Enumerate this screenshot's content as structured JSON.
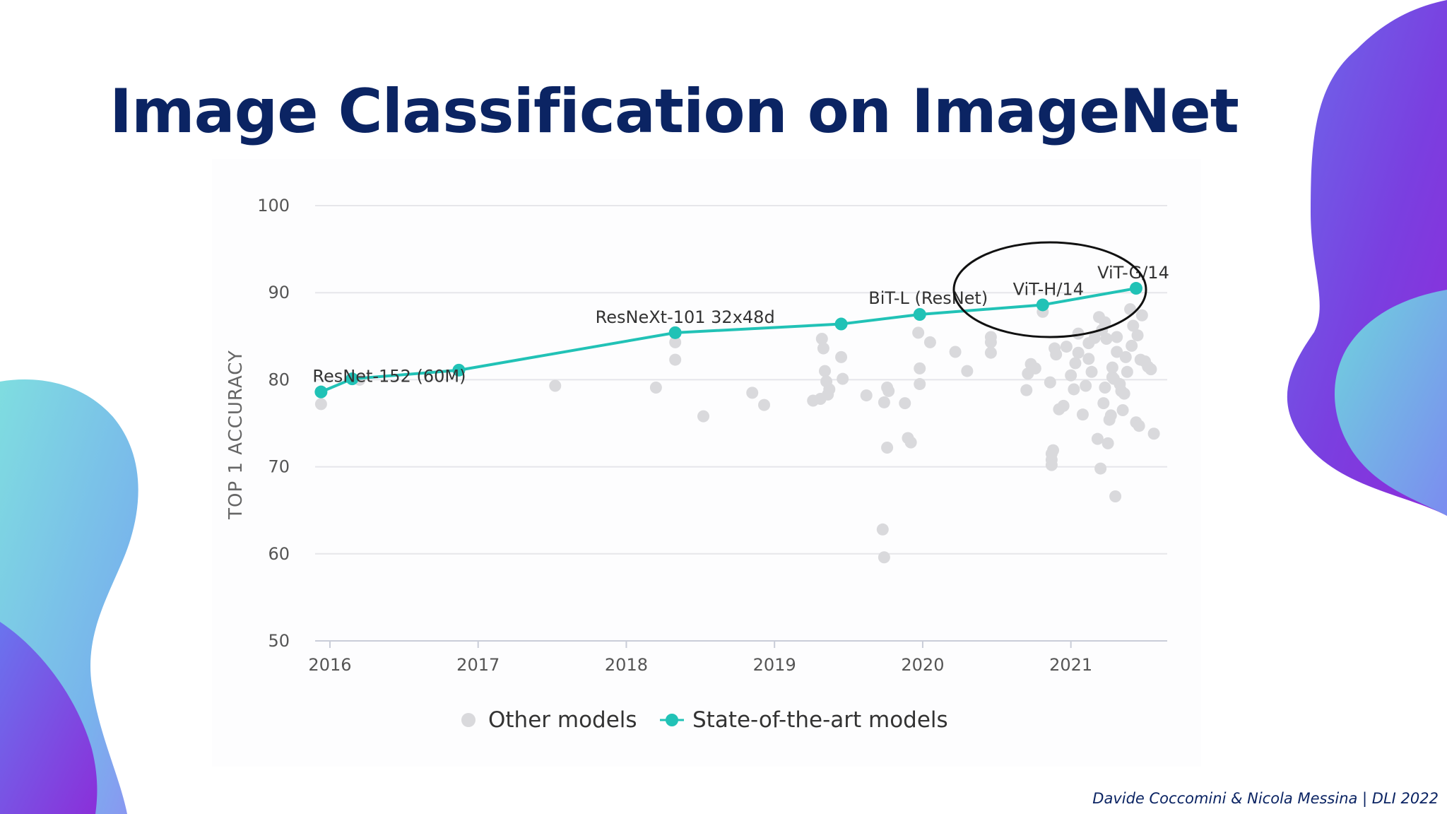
{
  "slide": {
    "title": "Image Classification on ImageNet",
    "footer": "Davide Coccomini & Nicola Messina | DLI 2022"
  },
  "colors": {
    "title": "#0b2463",
    "sota": "#21c2b6",
    "other": "#d9d9dc",
    "grid": "#e6e6ea",
    "highlight_circle": "#111111"
  },
  "chart_data": {
    "type": "scatter",
    "title": "",
    "ylabel": "TOP 1 ACCURACY",
    "xlabel": "",
    "xlim": [
      2015.9,
      2021.65
    ],
    "ylim": [
      50,
      100
    ],
    "x_ticks": [
      2016,
      2017,
      2018,
      2019,
      2020,
      2021
    ],
    "x_tick_labels": [
      "2016",
      "2017",
      "2018",
      "2019",
      "2020",
      "2021"
    ],
    "y_ticks": [
      50,
      60,
      70,
      80,
      90,
      100
    ],
    "y_tick_labels": [
      "50",
      "60",
      "70",
      "80",
      "90",
      "100"
    ],
    "grid": true,
    "legend_position": "bottom-center",
    "legend": [
      {
        "name": "Other models",
        "marker": "dot"
      },
      {
        "name": "State-of-the-art models",
        "marker": "line-dot"
      }
    ],
    "series": [
      {
        "name": "State-of-the-art models",
        "style": "line+markers",
        "points": [
          {
            "x": 2015.94,
            "y": 78.6,
            "label": "ResNet-152 (60M)"
          },
          {
            "x": 2016.15,
            "y": 80.1,
            "label": ""
          },
          {
            "x": 2016.87,
            "y": 81.1,
            "label": ""
          },
          {
            "x": 2018.33,
            "y": 85.4,
            "label": "ResNeXt-101 32x48d"
          },
          {
            "x": 2019.45,
            "y": 86.4,
            "label": ""
          },
          {
            "x": 2019.98,
            "y": 87.5,
            "label": "BiT-L (ResNet)"
          },
          {
            "x": 2020.81,
            "y": 88.6,
            "label": "ViT-H/14"
          },
          {
            "x": 2021.44,
            "y": 90.5,
            "label": "ViT-G/14"
          }
        ]
      },
      {
        "name": "Other models",
        "style": "markers",
        "x": [
          2015.94,
          2016.2,
          2017.52,
          2018.2,
          2018.33,
          2018.33,
          2018.33,
          2018.52,
          2018.85,
          2018.93,
          2019.26,
          2019.31,
          2019.32,
          2019.33,
          2019.34,
          2019.35,
          2019.36,
          2019.37,
          2019.45,
          2019.46,
          2019.62,
          2019.73,
          2019.74,
          2019.76,
          2019.77,
          2019.76,
          2019.74,
          2019.88,
          2019.9,
          2019.92,
          2019.97,
          2019.98,
          2019.98,
          2020.05,
          2020.22,
          2020.3,
          2020.46,
          2020.46,
          2020.46,
          2020.7,
          2020.71,
          2020.73,
          2020.76,
          2020.81,
          2020.86,
          2020.87,
          2020.87,
          2020.87,
          2020.88,
          2020.89,
          2020.9,
          2020.92,
          2020.95,
          2020.97,
          2021.0,
          2021.02,
          2021.03,
          2021.05,
          2021.08,
          2021.1,
          2021.12,
          2021.14,
          2021.16,
          2021.18,
          2021.2,
          2021.22,
          2021.23,
          2021.24,
          2021.25,
          2021.27,
          2021.28,
          2021.3,
          2021.31,
          2021.33,
          2021.35,
          2021.37,
          2021.38,
          2021.4,
          2021.42,
          2021.44,
          2021.46,
          2021.48,
          2021.5,
          2021.52,
          2021.54,
          2021.56,
          2021.05,
          2021.12,
          2021.21,
          2021.28,
          2021.34,
          2021.41,
          2021.47,
          2021.23,
          2021.26,
          2021.31,
          2021.36,
          2021.45,
          2021.19,
          2021.29
        ],
        "y": [
          77.2,
          80.0,
          79.3,
          79.1,
          84.3,
          82.3,
          85.4,
          75.8,
          78.5,
          77.1,
          77.6,
          77.8,
          84.7,
          83.6,
          81.0,
          79.8,
          78.3,
          78.9,
          82.6,
          80.1,
          78.2,
          62.8,
          59.6,
          72.2,
          78.7,
          79.1,
          77.4,
          77.3,
          73.3,
          72.8,
          85.4,
          81.3,
          79.5,
          84.3,
          83.2,
          81.0,
          84.9,
          84.3,
          83.1,
          78.8,
          80.7,
          81.8,
          81.3,
          87.8,
          79.7,
          70.2,
          70.8,
          71.5,
          71.9,
          83.6,
          82.9,
          76.6,
          77.0,
          83.8,
          80.5,
          78.9,
          81.9,
          85.3,
          76.0,
          79.3,
          82.4,
          80.9,
          84.8,
          73.2,
          69.8,
          77.3,
          86.6,
          84.7,
          72.7,
          75.9,
          81.4,
          66.6,
          83.2,
          79.5,
          76.5,
          82.6,
          80.9,
          88.1,
          86.2,
          75.1,
          74.7,
          87.4,
          82.1,
          81.5,
          81.2,
          73.8,
          83.1,
          84.2,
          85.7,
          80.3,
          78.7,
          83.9,
          82.3,
          79.1,
          75.4,
          84.9,
          78.4,
          85.1,
          87.2,
          80.1
        ]
      }
    ]
  }
}
